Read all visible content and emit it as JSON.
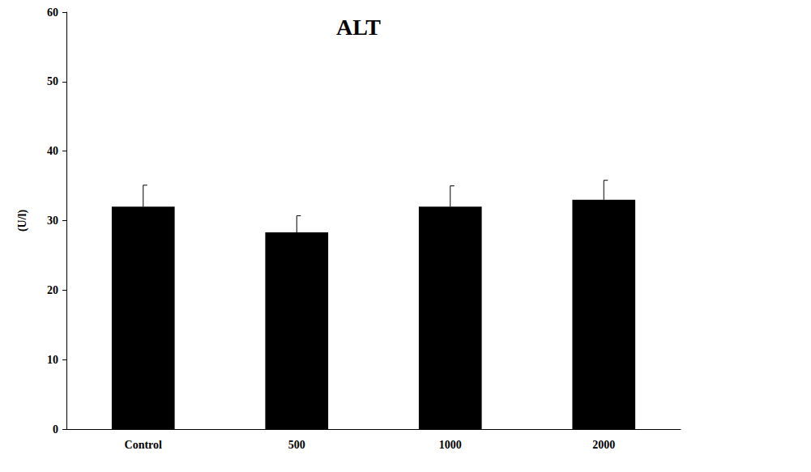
{
  "chart_data": {
    "type": "bar",
    "title": "ALT",
    "y_label": "(U/l)",
    "categories": [
      "Control",
      "500",
      "1000",
      "2000"
    ],
    "values": [
      32,
      28.3,
      32,
      33
    ],
    "error": [
      3.1,
      2.4,
      3.0,
      2.8
    ],
    "color": "#000000",
    "ylim": [
      0,
      60
    ],
    "yticks": [
      0,
      10,
      20,
      30,
      40,
      50,
      60
    ],
    "grid": false
  }
}
